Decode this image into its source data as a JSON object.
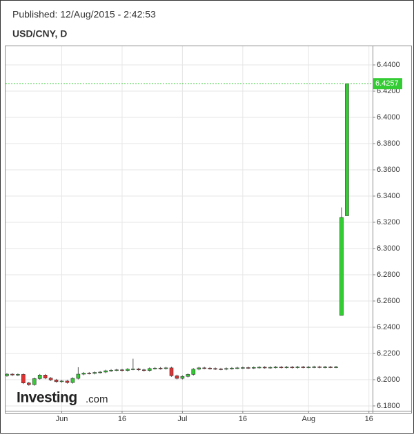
{
  "header": {
    "published": "Published: 12/Aug/2015 - 2:42:53"
  },
  "logo": {
    "name": "Investing",
    "suffix": ".com"
  },
  "chart_data": {
    "type": "candlestick",
    "title": "USD/CNY, D",
    "categories": [
      null,
      null,
      null,
      null,
      null,
      null,
      null,
      null,
      null,
      null,
      "Jun",
      null,
      null,
      null,
      null,
      null,
      null,
      null,
      null,
      null,
      null,
      "16",
      null,
      null,
      null,
      null,
      null,
      null,
      null,
      null,
      null,
      null,
      "Jul",
      null,
      null,
      null,
      null,
      null,
      null,
      null,
      null,
      null,
      null,
      "16",
      null,
      null,
      null,
      null,
      null,
      null,
      null,
      null,
      null,
      null,
      null,
      "Aug",
      null,
      null,
      null,
      null,
      null,
      null,
      null,
      null,
      null,
      null,
      "16"
    ],
    "open": [
      6.203,
      6.2042,
      6.2036,
      6.204,
      6.1975,
      6.1962,
      6.2008,
      6.2035,
      6.2012,
      6.1998,
      6.1985,
      6.199,
      6.1978,
      6.201,
      6.2042,
      6.205,
      6.2048,
      6.2055,
      6.2058,
      6.2068,
      6.2072,
      6.2075,
      6.207,
      6.208,
      6.2082,
      6.2075,
      6.207,
      6.2085,
      6.2088,
      6.2085,
      6.209,
      6.203,
      6.201,
      6.2025,
      6.204,
      6.208,
      6.209,
      6.2088,
      6.2085,
      6.2082,
      6.208,
      6.2085,
      6.2088,
      6.209,
      6.2092,
      6.209,
      6.2093,
      6.2095,
      6.2092,
      6.2094,
      6.2096,
      6.2094,
      6.2096,
      6.2093,
      6.2097,
      6.2095,
      6.2096,
      6.2098,
      6.2095,
      6.2097,
      6.2096,
      6.249,
      6.325,
      null,
      null,
      null,
      null
    ],
    "high": [
      6.205,
      6.205,
      6.2048,
      6.2048,
      6.1983,
      6.2016,
      6.2043,
      6.2043,
      6.202,
      6.2006,
      6.1998,
      6.1998,
      6.2018,
      6.2095,
      6.2058,
      6.2058,
      6.2063,
      6.2066,
      6.2076,
      6.208,
      6.2083,
      6.2083,
      6.2088,
      6.216,
      6.209,
      6.2083,
      6.2093,
      6.2096,
      6.2096,
      6.2098,
      6.2098,
      6.2038,
      6.2033,
      6.2048,
      6.2088,
      6.2098,
      6.2098,
      6.2096,
      6.2093,
      6.209,
      6.2093,
      6.2096,
      6.2098,
      6.21,
      6.21,
      6.2101,
      6.2103,
      6.2103,
      6.2102,
      6.2104,
      6.2104,
      6.2104,
      6.2104,
      6.2105,
      6.2105,
      6.2104,
      6.2106,
      6.2106,
      6.2105,
      6.2105,
      6.2105,
      6.3313,
      6.4257,
      null,
      null,
      null,
      null
    ],
    "low": [
      6.2022,
      6.2028,
      6.2028,
      6.1967,
      6.1954,
      6.1954,
      6.2,
      6.2004,
      6.199,
      6.1977,
      6.1977,
      6.197,
      6.197,
      6.2002,
      6.2034,
      6.204,
      6.204,
      6.2047,
      6.205,
      6.206,
      6.2064,
      6.2062,
      6.2062,
      6.2072,
      6.2067,
      6.2062,
      6.2062,
      6.2077,
      6.2077,
      6.2077,
      6.2022,
      6.2002,
      6.2002,
      6.2017,
      6.2032,
      6.2072,
      6.208,
      6.2077,
      6.2074,
      6.2072,
      6.2072,
      6.2077,
      6.208,
      6.2082,
      6.2082,
      6.2082,
      6.2085,
      6.2084,
      6.2084,
      6.2086,
      6.2086,
      6.2086,
      6.2085,
      6.2085,
      6.2087,
      6.2087,
      6.2088,
      6.2087,
      6.2087,
      6.2088,
      6.2088,
      6.249,
      6.325,
      null,
      null,
      null,
      null
    ],
    "close": [
      6.2042,
      6.2036,
      6.204,
      6.1975,
      6.1962,
      6.2008,
      6.2035,
      6.2012,
      6.1998,
      6.1985,
      6.199,
      6.1978,
      6.201,
      6.2042,
      6.205,
      6.2048,
      6.2055,
      6.2058,
      6.2068,
      6.2072,
      6.2075,
      6.207,
      6.208,
      6.2082,
      6.2075,
      6.207,
      6.2085,
      6.2088,
      6.2085,
      6.209,
      6.203,
      6.201,
      6.2025,
      6.204,
      6.208,
      6.209,
      6.2088,
      6.2085,
      6.2082,
      6.208,
      6.2085,
      6.2088,
      6.209,
      6.2092,
      6.209,
      6.2093,
      6.2095,
      6.2092,
      6.2094,
      6.2096,
      6.2094,
      6.2096,
      6.2093,
      6.2097,
      6.2095,
      6.2096,
      6.2098,
      6.2095,
      6.2097,
      6.2096,
      6.2097,
      6.3237,
      6.4257,
      null,
      null,
      null,
      null
    ],
    "up_color": "#33cc33",
    "down_color": "#dd3333",
    "ylim": [
      6.1763,
      6.4537
    ],
    "yticks": [
      {
        "value": 6.18,
        "label": "6.1800"
      },
      {
        "value": 6.2,
        "label": "6.2000"
      },
      {
        "value": 6.22,
        "label": "6.2200"
      },
      {
        "value": 6.24,
        "label": "6.2400"
      },
      {
        "value": 6.26,
        "label": "6.2600"
      },
      {
        "value": 6.28,
        "label": "6.2800"
      },
      {
        "value": 6.3,
        "label": "6.3000"
      },
      {
        "value": 6.32,
        "label": "6.3200"
      },
      {
        "value": 6.34,
        "label": "6.3400"
      },
      {
        "value": 6.36,
        "label": "6.3600"
      },
      {
        "value": 6.38,
        "label": "6.3800"
      },
      {
        "value": 6.4,
        "label": "6.4000"
      },
      {
        "value": 6.42,
        "label": "6.4200"
      },
      {
        "value": 6.44,
        "label": "6.4400"
      }
    ],
    "last_price": {
      "value": 6.4257,
      "label": "6.4257"
    },
    "grid": true
  }
}
